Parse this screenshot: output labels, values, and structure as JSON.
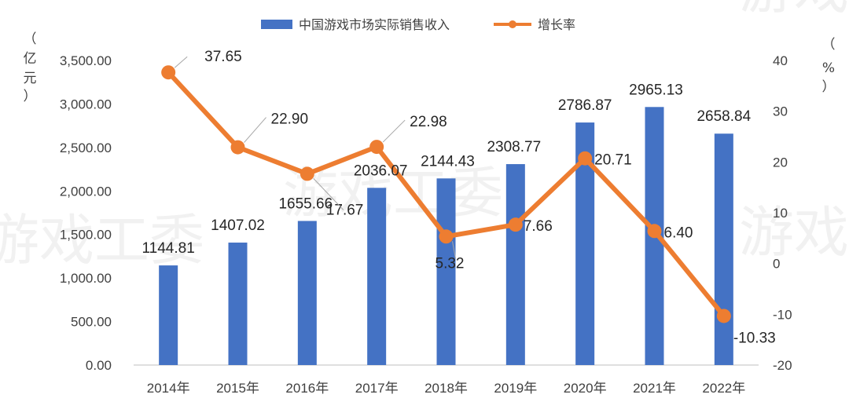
{
  "chart_data": {
    "type": "bar+line",
    "categories": [
      "2014年",
      "2015年",
      "2016年",
      "2017年",
      "2018年",
      "2019年",
      "2020年",
      "2021年",
      "2022年"
    ],
    "series": [
      {
        "name": "中国游戏市场实际销售收入",
        "type": "bar",
        "axis": "left",
        "color": "#4472C4",
        "values": [
          1144.81,
          1407.02,
          1655.66,
          2036.07,
          2144.43,
          2308.77,
          2786.87,
          2965.13,
          2658.84
        ]
      },
      {
        "name": "增长率",
        "type": "line",
        "axis": "right",
        "color": "#ED7D31",
        "values": [
          37.65,
          22.9,
          17.67,
          22.98,
          5.32,
          7.66,
          20.71,
          6.4,
          -10.33
        ]
      }
    ],
    "bar_labels": [
      "1144.81",
      "1407.02",
      "1655.66",
      "2036.07",
      "2144.43",
      "2308.77",
      "2786.87",
      "2965.13",
      "2658.84"
    ],
    "line_labels": [
      "37.65",
      "22.90",
      "17.67",
      "22.98",
      "5.32",
      "7.66",
      "20.71",
      "6.40",
      "-10.33"
    ],
    "y_left": {
      "label_chars": [
        "（",
        "亿",
        "元",
        "）"
      ],
      "range": [
        0,
        3500
      ],
      "ticks": [
        "0.00",
        "500.00",
        "1,000.00",
        "1,500.00",
        "2,000.00",
        "2,500.00",
        "3,000.00",
        "3,500.00"
      ]
    },
    "y_right": {
      "label_chars": [
        "（",
        "%",
        "）"
      ],
      "range": [
        -20,
        40
      ],
      "ticks": [
        "-20",
        "-10",
        "0",
        "10",
        "20",
        "30",
        "40"
      ]
    },
    "legend_position": "top-center",
    "grid": false
  },
  "watermark": "游戏工委"
}
